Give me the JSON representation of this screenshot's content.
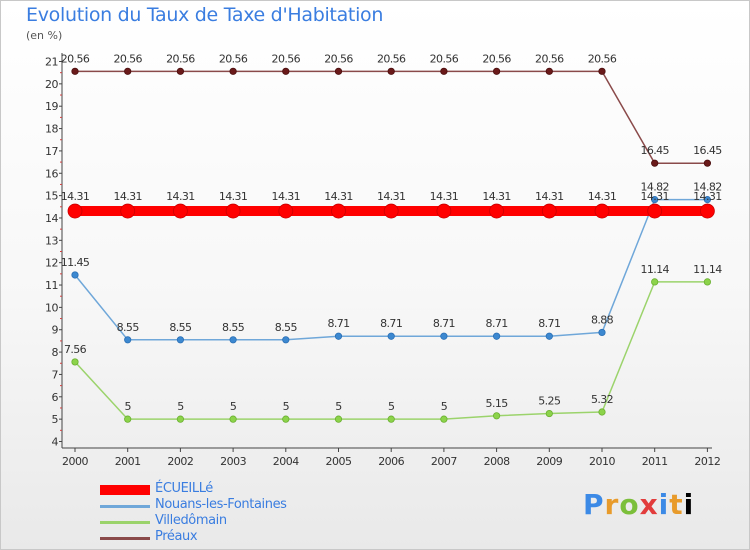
{
  "brand": {
    "letters": [
      "P",
      "r",
      "o",
      "x",
      "i",
      "t",
      "i"
    ]
  },
  "chart_data": {
    "type": "line",
    "title": "Evolution du Taux de Taxe d'Habitation",
    "subtitle": "(en %)",
    "categories": [
      "2000",
      "2001",
      "2002",
      "2003",
      "2004",
      "2005",
      "2006",
      "2007",
      "2008",
      "2009",
      "2010",
      "2011",
      "2012"
    ],
    "ylim": [
      4,
      21
    ],
    "yticks": [
      4,
      5,
      6,
      7,
      8,
      9,
      10,
      11,
      12,
      13,
      14,
      15,
      16,
      17,
      18,
      19,
      20,
      21
    ],
    "grid": false,
    "legend_position": "bottom-left",
    "series": [
      {
        "name": "ÉCUEILLé",
        "color": "#ff0000",
        "values": [
          14.31,
          14.31,
          14.31,
          14.31,
          14.31,
          14.31,
          14.31,
          14.31,
          14.31,
          14.31,
          14.31,
          14.31,
          14.31
        ],
        "labels": [
          "14.31",
          "14.31",
          "14.31",
          "14.31",
          "14.31",
          "14.31",
          "14.31",
          "14.31",
          "14.31",
          "14.31",
          "14.31",
          "14.31",
          "14.31"
        ]
      },
      {
        "name": "Nouans-les-Fontaines",
        "color": "#6fa7d9",
        "values": [
          11.45,
          8.55,
          8.55,
          8.55,
          8.55,
          8.71,
          8.71,
          8.71,
          8.71,
          8.71,
          8.88,
          14.82,
          14.82
        ],
        "labels": [
          "11.45",
          "8.55",
          "8.55",
          "8.55",
          "8.55",
          "8.71",
          "8.71",
          "8.71",
          "8.71",
          "8.71",
          "8.88",
          "14.82",
          "14.82"
        ]
      },
      {
        "name": "Villedômain",
        "color": "#9bd36b",
        "values": [
          7.56,
          5,
          5,
          5,
          5,
          5,
          5,
          5,
          5.15,
          5.25,
          5.32,
          11.14,
          11.14
        ],
        "labels": [
          "7.56",
          "5",
          "5",
          "5",
          "5",
          "5",
          "5",
          "5",
          "5.15",
          "5.25",
          "5.32",
          "11.14",
          "11.14"
        ]
      },
      {
        "name": "Préaux",
        "color": "#8a4a4a",
        "values": [
          20.56,
          20.56,
          20.56,
          20.56,
          20.56,
          20.56,
          20.56,
          20.56,
          20.56,
          20.56,
          20.56,
          16.45,
          16.45
        ],
        "labels": [
          "20.56",
          "20.56",
          "20.56",
          "20.56",
          "20.56",
          "20.56",
          "20.56",
          "20.56",
          "20.56",
          "20.56",
          "20.56",
          "16.45",
          "16.45"
        ]
      }
    ]
  }
}
